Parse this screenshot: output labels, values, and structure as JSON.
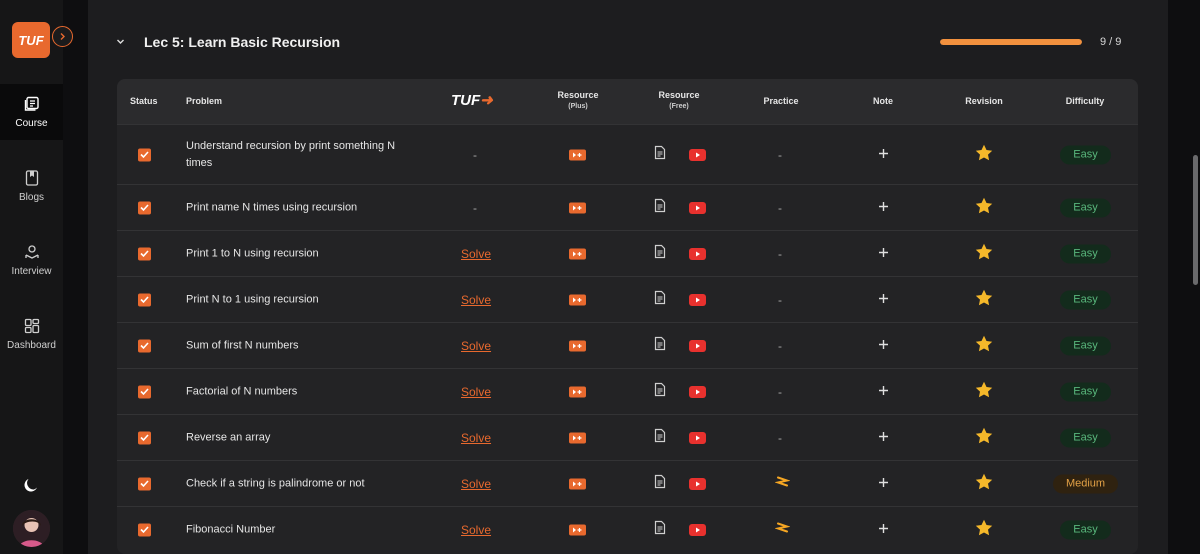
{
  "sidebar": {
    "logo_text": "TUF",
    "items": [
      {
        "label": "Course",
        "icon": "course-icon",
        "active": true
      },
      {
        "label": "Blogs",
        "icon": "bookmark-icon",
        "active": false
      },
      {
        "label": "Interview",
        "icon": "interview-icon",
        "active": false
      },
      {
        "label": "Dashboard",
        "icon": "dashboard-icon",
        "active": false
      }
    ]
  },
  "lecture": {
    "title": "Lec 5: Learn Basic Recursion",
    "progress_text": "9 / 9",
    "progress_fraction": 1.0
  },
  "table": {
    "headers": {
      "status": "Status",
      "problem": "Problem",
      "tuf_logo": "TUF",
      "resource_plus": "Resource",
      "resource_plus_sub": "(Plus)",
      "resource_free": "Resource",
      "resource_free_sub": "(Free)",
      "practice": "Practice",
      "note": "Note",
      "revision": "Revision",
      "difficulty": "Difficulty"
    },
    "rows": [
      {
        "problem": "Understand recursion by print something N times",
        "tuf": "-",
        "practice": "-",
        "difficulty": "Easy"
      },
      {
        "problem": "Print name N times using recursion",
        "tuf": "-",
        "practice": "-",
        "difficulty": "Easy"
      },
      {
        "problem": "Print 1 to N using recursion",
        "tuf": "Solve",
        "practice": "-",
        "difficulty": "Easy"
      },
      {
        "problem": "Print N to 1 using recursion",
        "tuf": "Solve",
        "practice": "-",
        "difficulty": "Easy"
      },
      {
        "problem": "Sum of first N numbers",
        "tuf": "Solve",
        "practice": "-",
        "difficulty": "Easy"
      },
      {
        "problem": "Factorial of N numbers",
        "tuf": "Solve",
        "practice": "-",
        "difficulty": "Easy"
      },
      {
        "problem": "Reverse an array",
        "tuf": "Solve",
        "practice": "-",
        "difficulty": "Easy"
      },
      {
        "problem": "Check if a string is palindrome or not",
        "tuf": "Solve",
        "practice": "codestudio-icon",
        "difficulty": "Medium"
      },
      {
        "problem": "Fibonacci Number",
        "tuf": "Solve",
        "practice": "codestudio-icon",
        "difficulty": "Easy"
      }
    ]
  },
  "colors": {
    "accent": "#e8692e",
    "progress": "#f2913e",
    "star": "#f5b82a",
    "easy": "#59b77c",
    "medium": "#e2a146"
  }
}
